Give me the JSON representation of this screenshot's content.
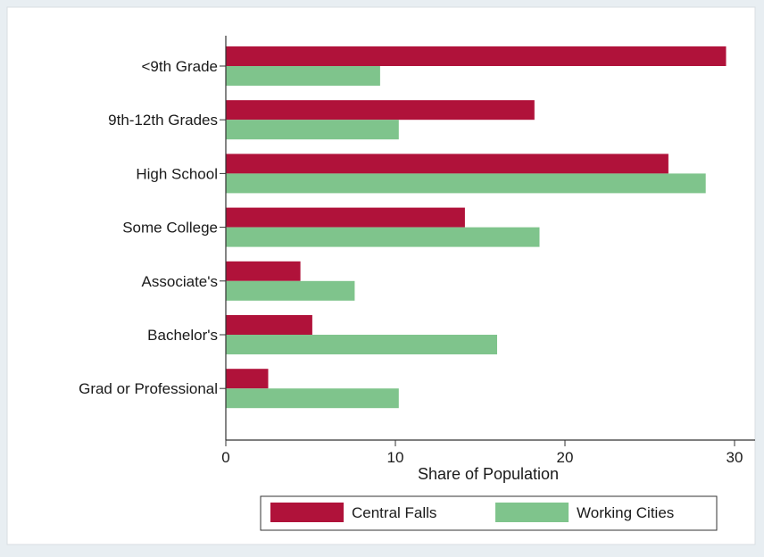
{
  "chart_data": {
    "type": "bar",
    "orientation": "horizontal",
    "title": "",
    "xlabel": "Share of Population",
    "ylabel": "",
    "xlim": [
      0,
      31
    ],
    "xticks": [
      0,
      10,
      20,
      30
    ],
    "grid": false,
    "legend_position": "bottom",
    "categories": [
      "<9th Grade",
      "9th-12th Grades",
      "High School",
      "Some College",
      "Associate's",
      "Bachelor's",
      "Grad or Professional"
    ],
    "series": [
      {
        "name": "Central Falls",
        "color": "#b0123a",
        "values": [
          29.5,
          18.2,
          26.1,
          14.1,
          4.4,
          5.1,
          2.5
        ]
      },
      {
        "name": "Working Cities",
        "color": "#7fc48c",
        "values": [
          9.1,
          10.2,
          28.3,
          18.5,
          7.6,
          16.0,
          10.2
        ]
      }
    ]
  }
}
